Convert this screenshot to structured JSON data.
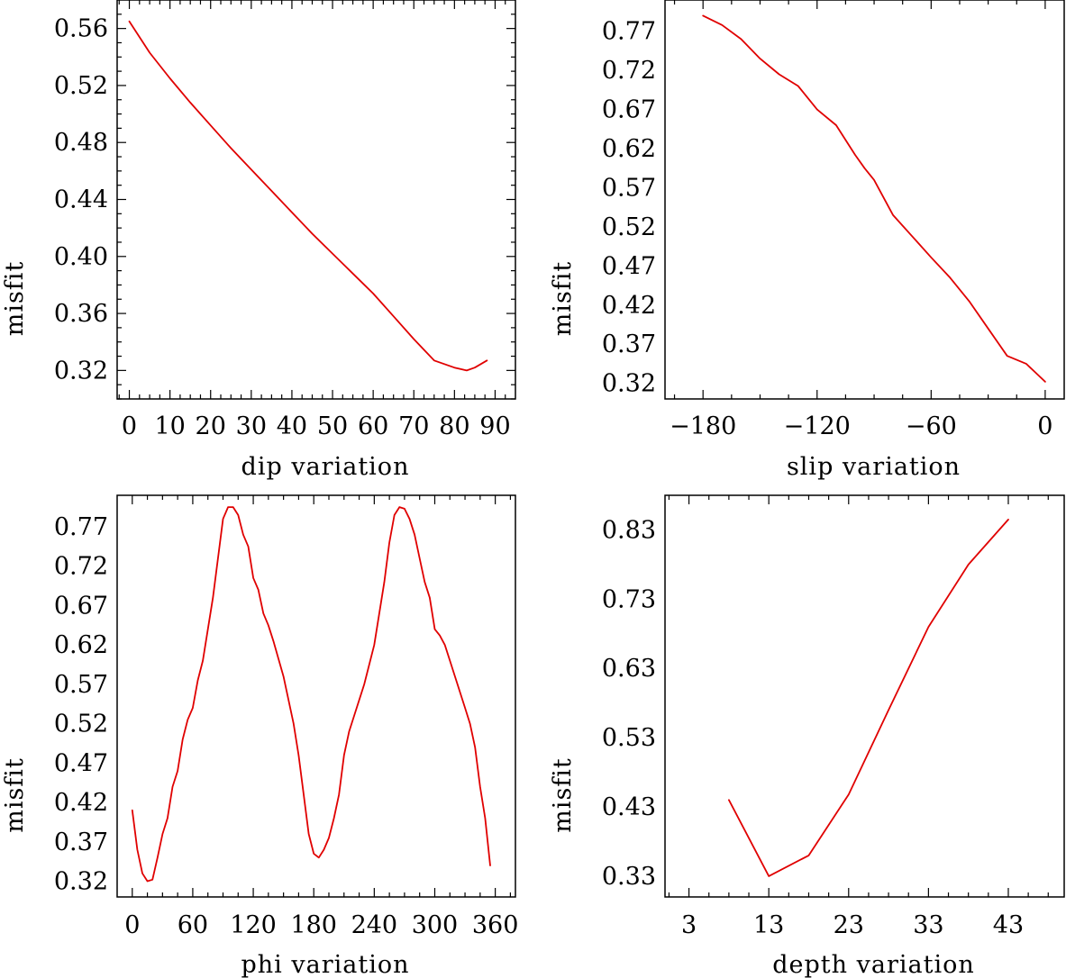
{
  "chart_data": [
    {
      "type": "line",
      "title": "",
      "xlabel": "dip     variation",
      "ylabel": "misfit",
      "xlim": [
        -3,
        95
      ],
      "ylim": [
        0.3,
        0.58
      ],
      "xticks": [
        0,
        10,
        20,
        30,
        40,
        50,
        60,
        70,
        80,
        90
      ],
      "xtick_labels": [
        "0",
        "10",
        "20",
        "30",
        "40",
        "50",
        "60",
        "70",
        "80",
        "90"
      ],
      "yticks": [
        0.32,
        0.36,
        0.4,
        0.44,
        0.48,
        0.52,
        0.56
      ],
      "ytick_labels": [
        "0.32",
        "0.36",
        "0.40",
        "0.44",
        "0.48",
        "0.52",
        "0.56"
      ],
      "line_color": "#e00000",
      "series": [
        {
          "name": "misfit",
          "x": [
            0,
            5,
            10,
            15,
            20,
            25,
            30,
            35,
            40,
            45,
            50,
            55,
            60,
            65,
            70,
            75,
            80,
            83,
            85,
            88
          ],
          "y": [
            0.565,
            0.543,
            0.525,
            0.508,
            0.492,
            0.476,
            0.461,
            0.446,
            0.431,
            0.416,
            0.402,
            0.388,
            0.374,
            0.358,
            0.342,
            0.327,
            0.322,
            0.32,
            0.322,
            0.327
          ]
        }
      ]
    },
    {
      "type": "line",
      "title": "",
      "xlabel": "slip   variation",
      "ylabel": "misfit",
      "xlim": [
        -200,
        10
      ],
      "ylim": [
        0.3,
        0.81
      ],
      "xticks": [
        -180,
        -120,
        -60,
        0
      ],
      "xtick_labels": [
        "−180",
        "−120",
        "−60",
        "0"
      ],
      "yticks": [
        0.32,
        0.37,
        0.42,
        0.47,
        0.52,
        0.57,
        0.62,
        0.67,
        0.72,
        0.77
      ],
      "ytick_labels": [
        "0.32",
        "0.37",
        "0.42",
        "0.47",
        "0.52",
        "0.57",
        "0.62",
        "0.67",
        "0.72",
        "0.77"
      ],
      "line_color": "#e00000",
      "series": [
        {
          "name": "misfit",
          "x": [
            -180,
            -170,
            -160,
            -150,
            -140,
            -130,
            -120,
            -110,
            -100,
            -95,
            -90,
            -80,
            -70,
            -60,
            -50,
            -40,
            -30,
            -20,
            -10,
            0
          ],
          "y": [
            0.79,
            0.778,
            0.76,
            0.735,
            0.715,
            0.7,
            0.67,
            0.65,
            0.612,
            0.595,
            0.58,
            0.535,
            0.508,
            0.481,
            0.455,
            0.425,
            0.39,
            0.355,
            0.345,
            0.322
          ]
        }
      ]
    },
    {
      "type": "line",
      "title": "",
      "xlabel": "phi     variation",
      "ylabel": "misfit",
      "xlim": [
        -15,
        380
      ],
      "ylim": [
        0.3,
        0.81
      ],
      "xticks": [
        0,
        60,
        120,
        180,
        240,
        300,
        360
      ],
      "xtick_labels": [
        "0",
        "60",
        "120",
        "180",
        "240",
        "300",
        "360"
      ],
      "yticks": [
        0.32,
        0.37,
        0.42,
        0.47,
        0.52,
        0.57,
        0.62,
        0.67,
        0.72,
        0.77
      ],
      "ytick_labels": [
        "0.32",
        "0.37",
        "0.42",
        "0.47",
        "0.52",
        "0.57",
        "0.62",
        "0.67",
        "0.72",
        "0.77"
      ],
      "line_color": "#e00000",
      "series": [
        {
          "name": "misfit",
          "x": [
            0,
            5,
            10,
            15,
            20,
            25,
            30,
            35,
            40,
            45,
            50,
            55,
            60,
            65,
            70,
            75,
            80,
            85,
            90,
            95,
            100,
            105,
            110,
            115,
            120,
            125,
            130,
            135,
            140,
            150,
            160,
            165,
            170,
            175,
            180,
            185,
            190,
            195,
            200,
            205,
            210,
            215,
            220,
            225,
            230,
            240,
            250,
            255,
            260,
            265,
            270,
            275,
            280,
            285,
            290,
            295,
            300,
            305,
            310,
            315,
            320,
            325,
            330,
            335,
            340,
            345,
            350,
            355
          ],
          "y": [
            0.41,
            0.36,
            0.33,
            0.32,
            0.322,
            0.35,
            0.38,
            0.4,
            0.44,
            0.46,
            0.5,
            0.525,
            0.54,
            0.575,
            0.6,
            0.64,
            0.68,
            0.73,
            0.78,
            0.795,
            0.795,
            0.785,
            0.76,
            0.745,
            0.705,
            0.69,
            0.66,
            0.645,
            0.625,
            0.58,
            0.52,
            0.48,
            0.43,
            0.38,
            0.355,
            0.35,
            0.36,
            0.375,
            0.4,
            0.43,
            0.48,
            0.51,
            0.53,
            0.55,
            0.57,
            0.62,
            0.7,
            0.75,
            0.785,
            0.795,
            0.793,
            0.78,
            0.76,
            0.73,
            0.7,
            0.68,
            0.64,
            0.632,
            0.62,
            0.6,
            0.58,
            0.56,
            0.54,
            0.52,
            0.49,
            0.44,
            0.4,
            0.34
          ]
        }
      ]
    },
    {
      "type": "line",
      "title": "",
      "xlabel": "depth   variation",
      "ylabel": "misfit",
      "xlim": [
        0,
        50
      ],
      "ylim": [
        0.3,
        0.88
      ],
      "xticks": [
        3,
        13,
        23,
        33,
        43
      ],
      "xtick_labels": [
        "3",
        "13",
        "23",
        "33",
        "43"
      ],
      "yticks": [
        0.33,
        0.43,
        0.53,
        0.63,
        0.73,
        0.83
      ],
      "ytick_labels": [
        "0.33",
        "0.43",
        "0.53",
        "0.63",
        "0.73",
        "0.83"
      ],
      "line_color": "#e00000",
      "series": [
        {
          "name": "misfit",
          "x": [
            8,
            13,
            18,
            23,
            28,
            33,
            38,
            43
          ],
          "y": [
            0.44,
            0.33,
            0.36,
            0.448,
            0.57,
            0.69,
            0.78,
            0.845
          ]
        }
      ]
    }
  ]
}
